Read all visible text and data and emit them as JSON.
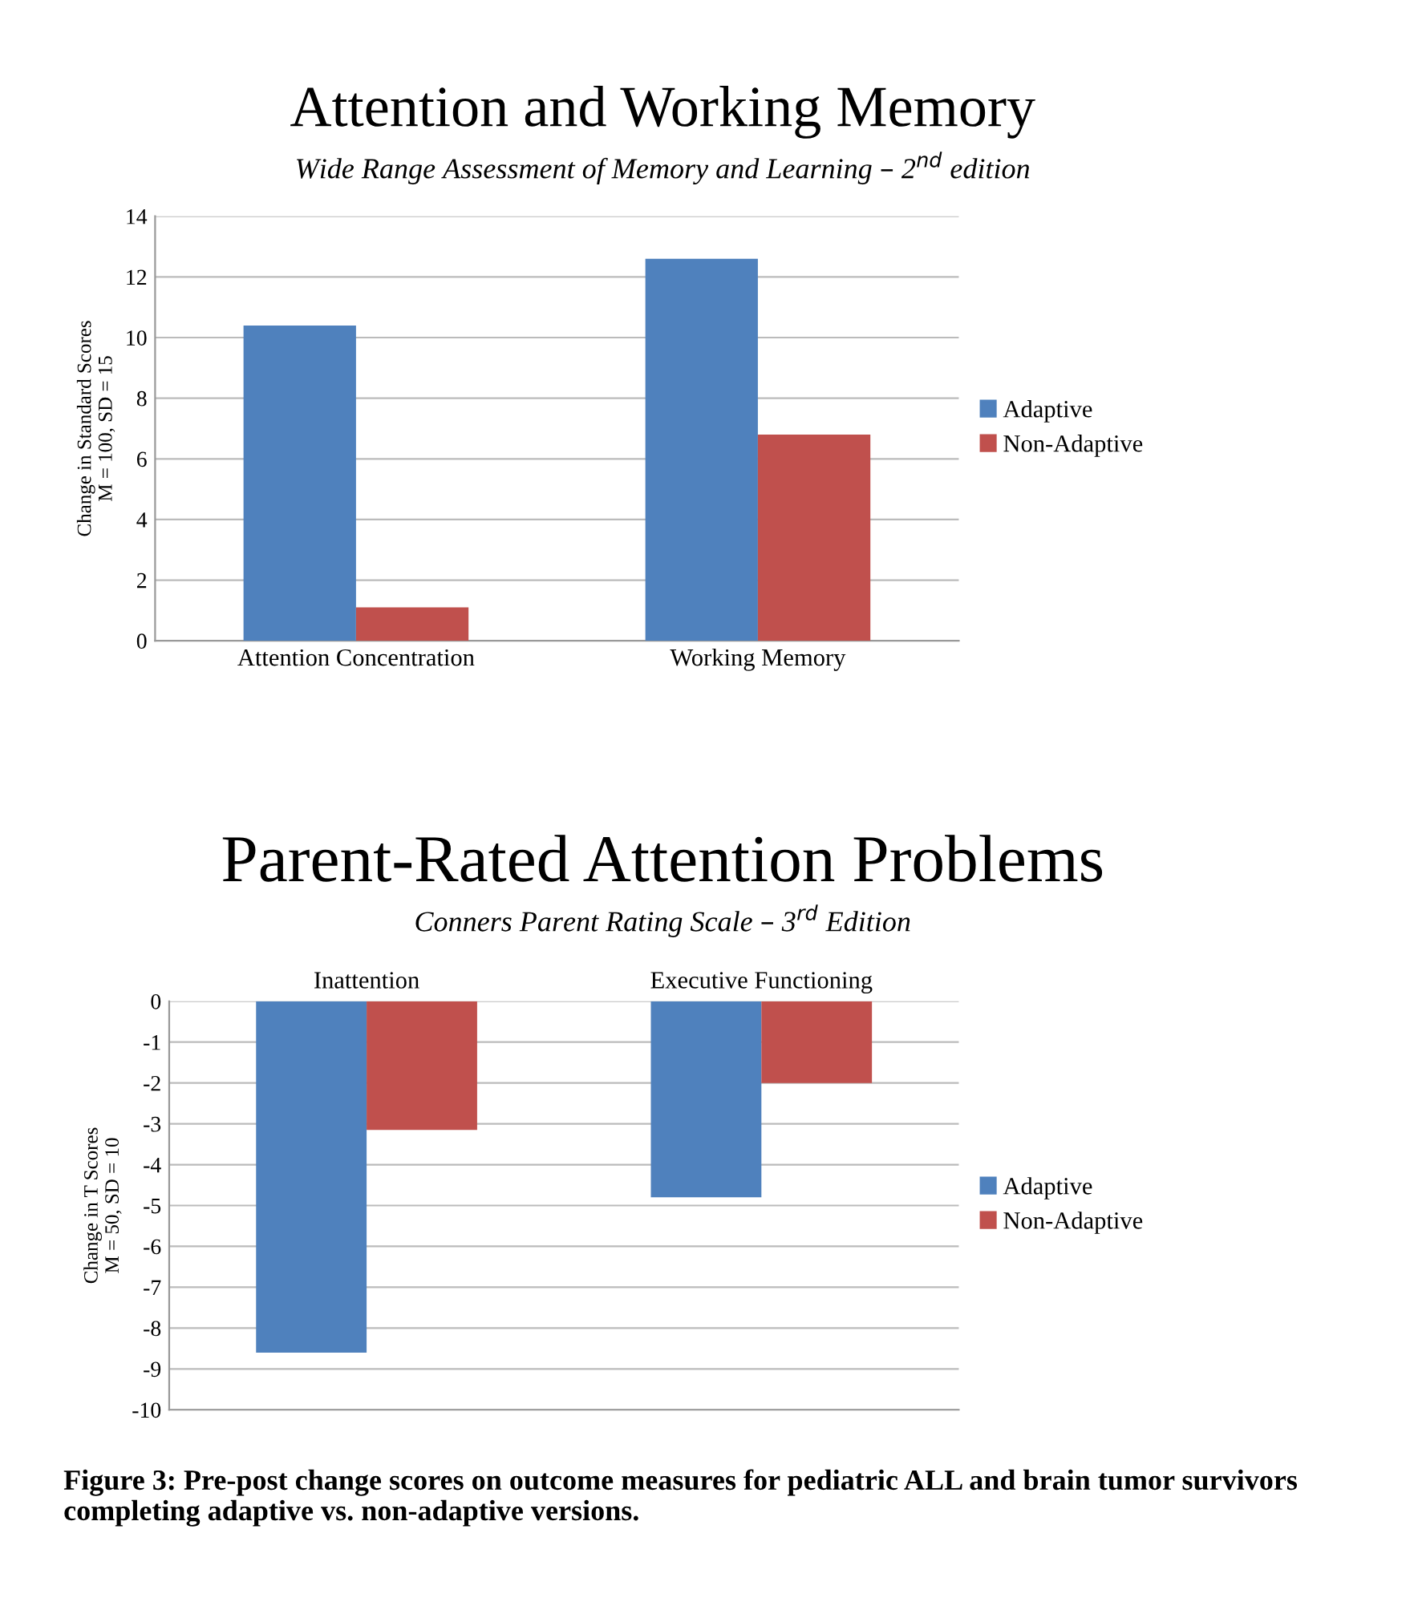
{
  "chart_data": [
    {
      "type": "bar",
      "title": "Attention and Working Memory",
      "subtitle": "Wide Range Assessment of Memory and Learning – 2$^{nd}$ edition",
      "ylabel": "Change in Standard Scores\nM = 100, SD = 15",
      "categories": [
        "Attention Concentration",
        "Working Memory"
      ],
      "series": [
        {
          "name": "Adaptive",
          "color": "#4f81bd",
          "values": [
            10.4,
            12.6
          ]
        },
        {
          "name": "Non-Adaptive",
          "color": "#c0504d",
          "values": [
            1.1,
            6.8
          ]
        }
      ],
      "ylim": [
        0,
        14
      ],
      "yticks": [
        0,
        2,
        4,
        6,
        8,
        10,
        12,
        14
      ],
      "grid": "y",
      "legend": "right"
    },
    {
      "type": "bar",
      "title": "Parent-Rated Attention Problems",
      "subtitle": "Conners Parent Rating Scale – 3$^{rd}$ Edition",
      "ylabel": "Change in T Scores\nM = 50, SD = 10",
      "categories": [
        "Inattention",
        "Executive Functioning"
      ],
      "series": [
        {
          "name": "Adaptive",
          "color": "#4f81bd",
          "values": [
            -8.6,
            -4.8
          ]
        },
        {
          "name": "Non-Adaptive",
          "color": "#c0504d",
          "values": [
            -3.15,
            -2.0
          ]
        }
      ],
      "ylim": [
        -10,
        0
      ],
      "yticks": [
        -10,
        -9,
        -8,
        -7,
        -6,
        -5,
        -4,
        -3,
        -2,
        -1,
        0
      ],
      "grid": "y",
      "legend": "right",
      "annotations": [
        "Figure 3: Pre-post change scores on outcome measures for pediatric ALL and brain tumor survivors completing adaptive vs. non-adaptive versions."
      ]
    }
  ]
}
